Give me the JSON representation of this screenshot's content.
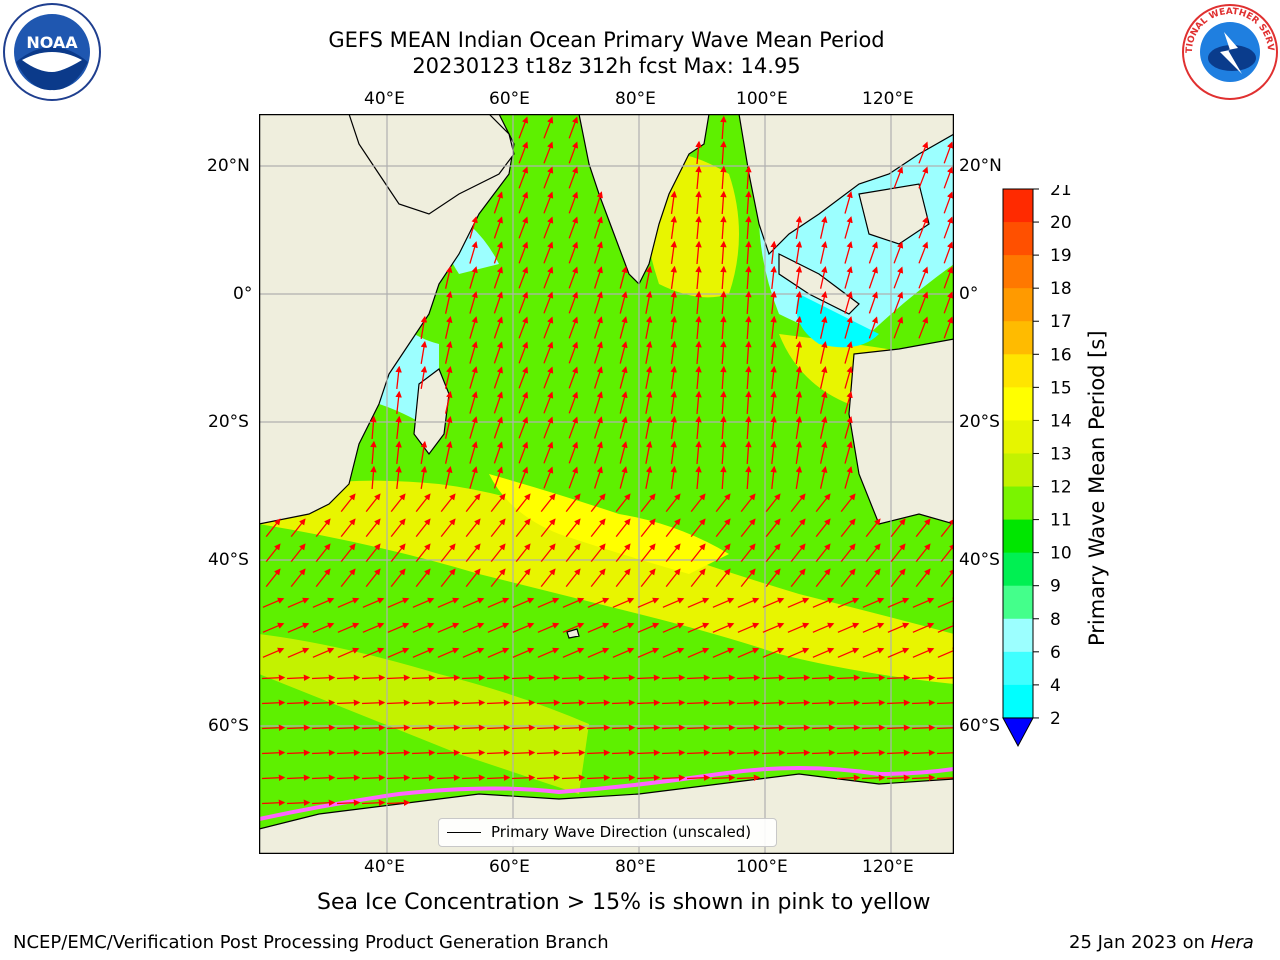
{
  "title_line1": "GEFS MEAN Indian Ocean Primary Wave Mean Period",
  "title_line2": "20230123 t18z 312h fcst   Max: 14.95",
  "lon_ticks": [
    "40°E",
    "60°E",
    "80°E",
    "100°E",
    "120°E"
  ],
  "lat_ticks": [
    "20°N",
    "0°",
    "20°S",
    "40°S",
    "60°S"
  ],
  "legend_label": "Primary Wave Direction (unscaled)",
  "colorbar": {
    "label": "Primary Wave Mean Period [s]",
    "ticks": [
      "21",
      "20",
      "19",
      "18",
      "17",
      "16",
      "15",
      "14",
      "13",
      "12",
      "11",
      "10",
      "9",
      "8",
      "6",
      "4",
      "2"
    ],
    "colors": [
      "#ff0000",
      "#ff2a00",
      "#ff5000",
      "#ff7800",
      "#ff9a00",
      "#ffbb00",
      "#ffe500",
      "#ffff00",
      "#e6f500",
      "#c3f200",
      "#7af400",
      "#00e600",
      "#00f052",
      "#44ff8b",
      "#9cffff",
      "#40ffff",
      "#00ffff",
      "#0080ff"
    ],
    "under_color": "#0000ff"
  },
  "caption": "Sea Ice Concentration > 15% is shown in pink to yellow",
  "footer_left": "NCEP/EMC/Verification Post Processing Product Generation Branch",
  "footer_right_prefix": "25 Jan 2023 on ",
  "footer_right_host": "Hera",
  "logo_left": "NOAA",
  "logo_right": "NATIONAL WEATHER SERVICE",
  "colors": {
    "land": "#efeedd",
    "ocean_green": "#5ef000",
    "ocean_yellow": "#e8f500",
    "ocean_cyan": "#9cffff",
    "arrow": "#ff0000"
  }
}
